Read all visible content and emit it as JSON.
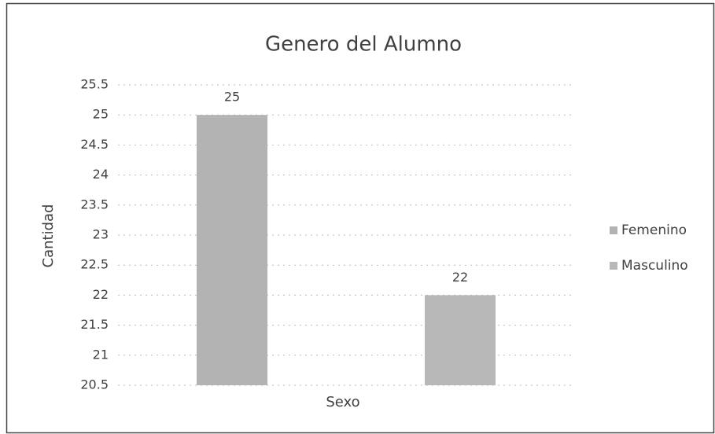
{
  "chart_data": {
    "type": "bar",
    "title": "Genero del Alumno",
    "x_label": "Sexo",
    "y_label": "Cantidad",
    "categories": [
      null
    ],
    "series": [
      {
        "name": "Femenino",
        "color": "#b3b3b3",
        "values": [
          25
        ]
      },
      {
        "name": "Masculino",
        "color": "#b8b8b8",
        "values": [
          22
        ]
      }
    ],
    "ylim": [
      20.5,
      25.5
    ],
    "yticks": [
      20.5,
      21,
      21.5,
      22,
      22.5,
      23,
      23.5,
      24,
      24.5,
      25,
      25.5
    ],
    "grid": true,
    "legend": "right"
  }
}
